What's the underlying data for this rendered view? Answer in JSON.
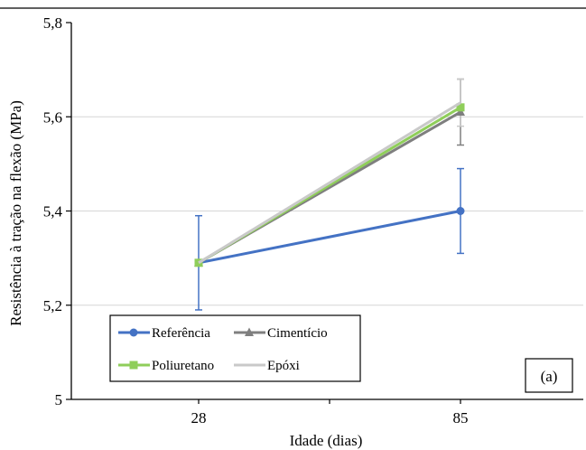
{
  "chart_data": {
    "type": "line",
    "title": "",
    "xlabel": "Idade (dias)",
    "ylabel": "Resistência à tração na flexão (MPa)",
    "categories": [
      "28",
      "85"
    ],
    "yticks": [
      "5",
      "5,2",
      "5,4",
      "5,6",
      "5,8"
    ],
    "ylim": [
      5.0,
      5.8
    ],
    "grid": true,
    "legend_position": "bottom-left",
    "panel_label": "(a)",
    "series": [
      {
        "name": "Referência",
        "values": [
          5.29,
          5.4
        ],
        "error": [
          0.1,
          0.09
        ],
        "color": "#4472c4",
        "marker": "circle"
      },
      {
        "name": "Cimentício",
        "values": [
          5.29,
          5.61
        ],
        "error": [
          0.0,
          0.07
        ],
        "color": "#7f7f7f",
        "marker": "triangle"
      },
      {
        "name": "Poliuretano",
        "values": [
          5.29,
          5.62
        ],
        "error": [
          0.0,
          0.0
        ],
        "color": "#8fce5a",
        "marker": "square"
      },
      {
        "name": "Epóxi",
        "values": [
          5.29,
          5.63
        ],
        "error": [
          0.0,
          0.05
        ],
        "color": "#c9c9c9",
        "marker": "none"
      }
    ]
  }
}
